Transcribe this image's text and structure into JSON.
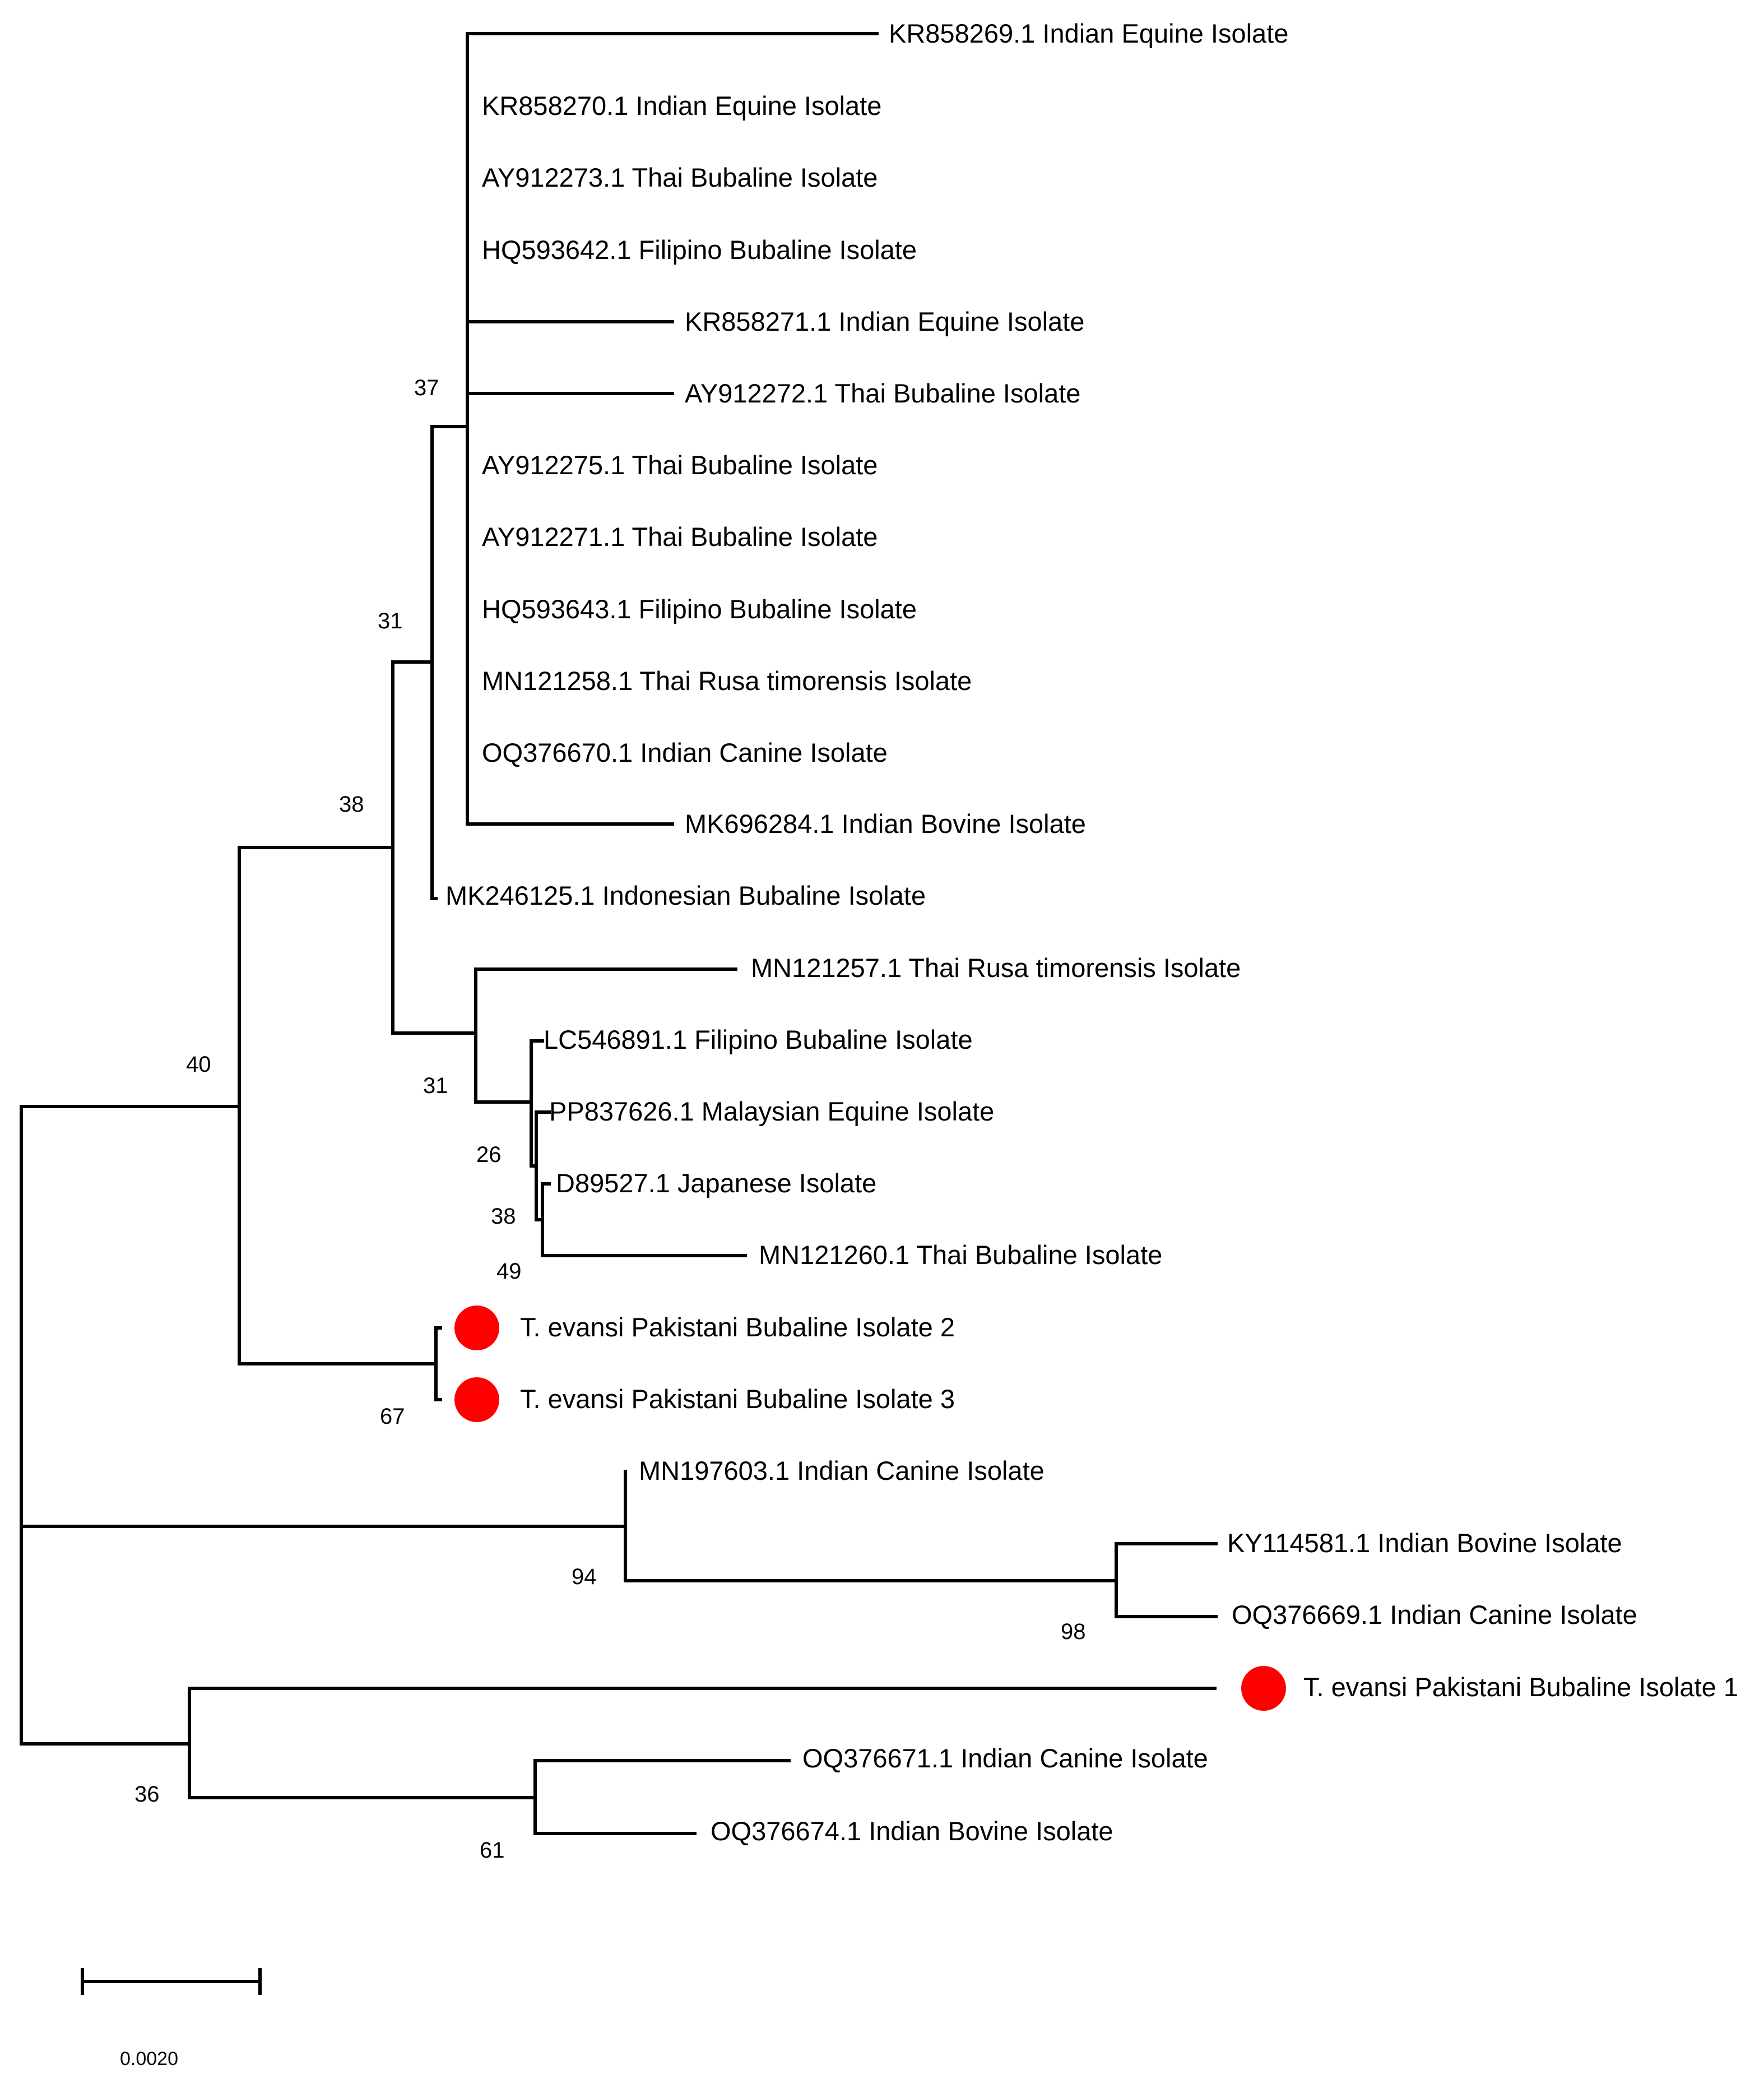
{
  "figure": {
    "type": "phylogenetic_tree",
    "scale_bar": {
      "value": 0.002,
      "label": "0.0020"
    },
    "highlight_color": "#ff0000",
    "line_color": "#000000",
    "leaves": [
      {
        "id": "KR858269",
        "label": "KR858269.1 Indian Equine Isolate"
      },
      {
        "id": "KR858270",
        "label": "KR858270.1 Indian Equine Isolate"
      },
      {
        "id": "AY912273",
        "label": "AY912273.1 Thai Bubaline Isolate"
      },
      {
        "id": "HQ593642",
        "label": "HQ593642.1 Filipino Bubaline Isolate"
      },
      {
        "id": "KR858271",
        "label": "KR858271.1 Indian Equine Isolate"
      },
      {
        "id": "AY912272",
        "label": "AY912272.1 Thai Bubaline Isolate"
      },
      {
        "id": "AY912275",
        "label": "AY912275.1 Thai Bubaline Isolate"
      },
      {
        "id": "AY912271",
        "label": "AY912271.1 Thai Bubaline Isolate"
      },
      {
        "id": "HQ593643",
        "label": "HQ593643.1 Filipino Bubaline Isolate"
      },
      {
        "id": "MN121258",
        "label": "MN121258.1 Thai Rusa timorensis Isolate"
      },
      {
        "id": "OQ376670",
        "label": "OQ376670.1 Indian Canine Isolate"
      },
      {
        "id": "MK696284",
        "label": "MK696284.1 Indian Bovine Isolate"
      },
      {
        "id": "MK246125",
        "label": "MK246125.1 Indonesian Bubaline Isolate"
      },
      {
        "id": "MN121257",
        "label": "MN121257.1 Thai Rusa timorensis Isolate"
      },
      {
        "id": "LC546891",
        "label": "LC546891.1 Filipino Bubaline Isolate"
      },
      {
        "id": "PP837626",
        "label": "PP837626.1 Malaysian Equine Isolate"
      },
      {
        "id": "D89527",
        "label": "D89527.1 Japanese Isolate"
      },
      {
        "id": "MN121260",
        "label": "MN121260.1 Thai Bubaline Isolate"
      },
      {
        "id": "PAK2",
        "label": "T. evansi Pakistani Bubaline Isolate 2",
        "highlight": true
      },
      {
        "id": "PAK3",
        "label": "T. evansi Pakistani Bubaline Isolate 3",
        "highlight": true
      },
      {
        "id": "MN197603",
        "label": "MN197603.1 Indian Canine Isolate"
      },
      {
        "id": "KY114581",
        "label": "KY114581.1 Indian Bovine Isolate"
      },
      {
        "id": "OQ376669",
        "label": "OQ376669.1 Indian Canine Isolate"
      },
      {
        "id": "PAK1",
        "label": "T. evansi Pakistani Bubaline Isolate 1",
        "highlight": true
      },
      {
        "id": "OQ376671",
        "label": "OQ376671.1 Indian Canine Isolate"
      },
      {
        "id": "OQ376674",
        "label": "OQ376674.1 Indian Bovine Isolate"
      }
    ],
    "bootstrap_values": [
      {
        "node": "clade-37",
        "value": "37"
      },
      {
        "node": "clade-31-upper",
        "value": "31"
      },
      {
        "node": "clade-38-upper",
        "value": "38"
      },
      {
        "node": "clade-40",
        "value": "40"
      },
      {
        "node": "clade-31-lower",
        "value": "31"
      },
      {
        "node": "clade-26",
        "value": "26"
      },
      {
        "node": "clade-38-lower",
        "value": "38"
      },
      {
        "node": "clade-49",
        "value": "49"
      },
      {
        "node": "clade-67",
        "value": "67"
      },
      {
        "node": "clade-94",
        "value": "94"
      },
      {
        "node": "clade-98",
        "value": "98"
      },
      {
        "node": "clade-36",
        "value": "36"
      },
      {
        "node": "clade-61",
        "value": "61"
      }
    ]
  }
}
